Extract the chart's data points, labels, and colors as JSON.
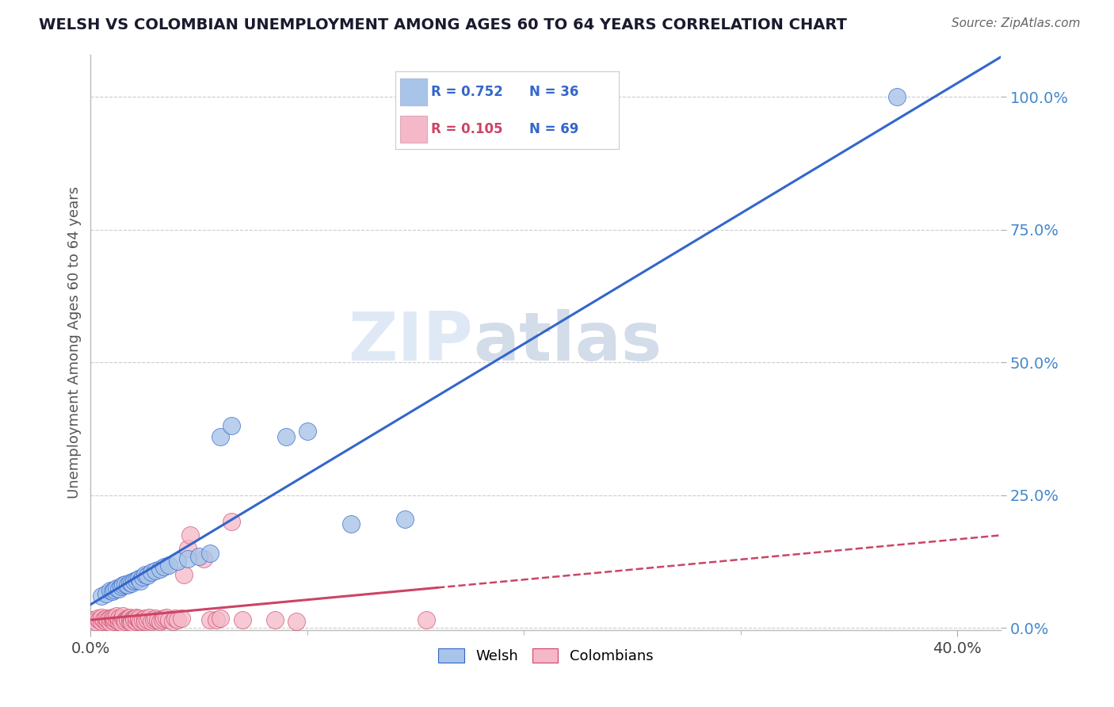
{
  "title": "WELSH VS COLOMBIAN UNEMPLOYMENT AMONG AGES 60 TO 64 YEARS CORRELATION CHART",
  "source": "Source: ZipAtlas.com",
  "xlim": [
    0.0,
    0.42
  ],
  "ylim": [
    -0.005,
    1.08
  ],
  "ylabel": "Unemployment Among Ages 60 to 64 years",
  "welsh_R": "0.752",
  "welsh_N": "36",
  "colombian_R": "0.105",
  "colombian_N": "69",
  "welsh_color": "#A8C4E8",
  "colombian_color": "#F5B8C8",
  "welsh_line_color": "#3366CC",
  "colombian_line_color": "#CC4466",
  "watermark_blue": "#C5D8F0",
  "watermark_gray": "#B0C0D8",
  "legend_welsh_label": "Welsh",
  "legend_colombians_label": "Colombians",
  "welsh_scatter": [
    [
      0.372,
      1.0
    ],
    [
      0.005,
      0.06
    ],
    [
      0.007,
      0.065
    ],
    [
      0.009,
      0.07
    ],
    [
      0.01,
      0.068
    ],
    [
      0.011,
      0.072
    ],
    [
      0.012,
      0.075
    ],
    [
      0.013,
      0.073
    ],
    [
      0.014,
      0.078
    ],
    [
      0.015,
      0.08
    ],
    [
      0.016,
      0.082
    ],
    [
      0.017,
      0.08
    ],
    [
      0.018,
      0.085
    ],
    [
      0.019,
      0.083
    ],
    [
      0.02,
      0.088
    ],
    [
      0.021,
      0.09
    ],
    [
      0.022,
      0.092
    ],
    [
      0.023,
      0.088
    ],
    [
      0.024,
      0.095
    ],
    [
      0.025,
      0.1
    ],
    [
      0.026,
      0.098
    ],
    [
      0.028,
      0.105
    ],
    [
      0.03,
      0.108
    ],
    [
      0.032,
      0.11
    ],
    [
      0.034,
      0.115
    ],
    [
      0.036,
      0.118
    ],
    [
      0.04,
      0.125
    ],
    [
      0.045,
      0.13
    ],
    [
      0.05,
      0.135
    ],
    [
      0.055,
      0.14
    ],
    [
      0.06,
      0.36
    ],
    [
      0.065,
      0.38
    ],
    [
      0.09,
      0.36
    ],
    [
      0.1,
      0.37
    ],
    [
      0.12,
      0.195
    ],
    [
      0.145,
      0.205
    ]
  ],
  "colombian_scatter": [
    [
      0.0,
      0.015
    ],
    [
      0.002,
      0.012
    ],
    [
      0.003,
      0.018
    ],
    [
      0.004,
      0.015
    ],
    [
      0.005,
      0.012
    ],
    [
      0.005,
      0.02
    ],
    [
      0.006,
      0.015
    ],
    [
      0.007,
      0.012
    ],
    [
      0.007,
      0.018
    ],
    [
      0.008,
      0.015
    ],
    [
      0.009,
      0.01
    ],
    [
      0.009,
      0.018
    ],
    [
      0.01,
      0.015
    ],
    [
      0.01,
      0.02
    ],
    [
      0.011,
      0.012
    ],
    [
      0.011,
      0.018
    ],
    [
      0.012,
      0.015
    ],
    [
      0.012,
      0.022
    ],
    [
      0.013,
      0.012
    ],
    [
      0.013,
      0.018
    ],
    [
      0.014,
      0.015
    ],
    [
      0.014,
      0.01
    ],
    [
      0.015,
      0.018
    ],
    [
      0.015,
      0.022
    ],
    [
      0.016,
      0.015
    ],
    [
      0.016,
      0.012
    ],
    [
      0.017,
      0.018
    ],
    [
      0.017,
      0.015
    ],
    [
      0.018,
      0.012
    ],
    [
      0.018,
      0.02
    ],
    [
      0.019,
      0.015
    ],
    [
      0.019,
      0.01
    ],
    [
      0.02,
      0.018
    ],
    [
      0.02,
      0.015
    ],
    [
      0.021,
      0.012
    ],
    [
      0.021,
      0.02
    ],
    [
      0.022,
      0.015
    ],
    [
      0.022,
      0.018
    ],
    [
      0.023,
      0.012
    ],
    [
      0.024,
      0.015
    ],
    [
      0.025,
      0.018
    ],
    [
      0.025,
      0.012
    ],
    [
      0.026,
      0.015
    ],
    [
      0.027,
      0.02
    ],
    [
      0.028,
      0.012
    ],
    [
      0.029,
      0.015
    ],
    [
      0.03,
      0.018
    ],
    [
      0.031,
      0.015
    ],
    [
      0.032,
      0.012
    ],
    [
      0.033,
      0.015
    ],
    [
      0.034,
      0.018
    ],
    [
      0.035,
      0.02
    ],
    [
      0.036,
      0.015
    ],
    [
      0.038,
      0.012
    ],
    [
      0.039,
      0.018
    ],
    [
      0.04,
      0.015
    ],
    [
      0.042,
      0.018
    ],
    [
      0.043,
      0.1
    ],
    [
      0.045,
      0.15
    ],
    [
      0.046,
      0.175
    ],
    [
      0.052,
      0.13
    ],
    [
      0.055,
      0.015
    ],
    [
      0.058,
      0.015
    ],
    [
      0.06,
      0.018
    ],
    [
      0.065,
      0.2
    ],
    [
      0.07,
      0.015
    ],
    [
      0.085,
      0.015
    ],
    [
      0.095,
      0.012
    ],
    [
      0.155,
      0.015
    ]
  ]
}
